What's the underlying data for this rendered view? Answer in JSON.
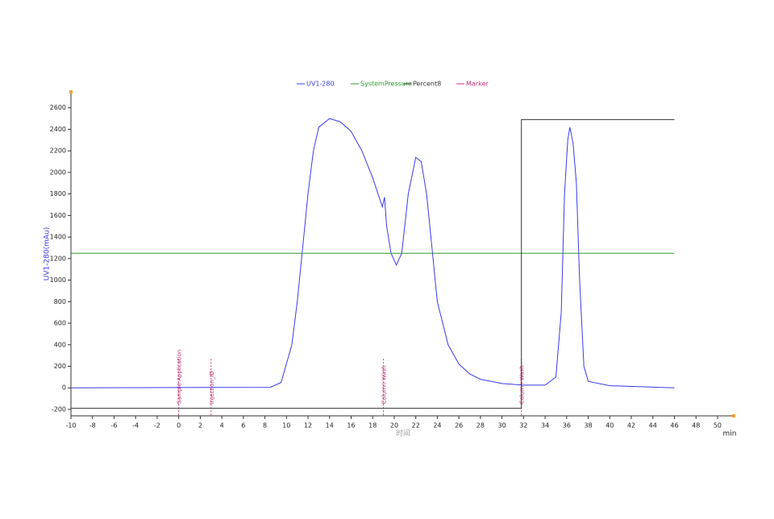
{
  "chart_data": {
    "type": "line",
    "y_label": "UV1-280(mAu)",
    "x_label": "时间",
    "x_unit": "min",
    "xlim": [
      -10,
      51.5
    ],
    "ylim": [
      -260,
      2740
    ],
    "xticks": [
      -10,
      -8,
      -6,
      -4,
      -2,
      0,
      2,
      4,
      6,
      8,
      10,
      12,
      14,
      16,
      18,
      20,
      22,
      24,
      26,
      28,
      30,
      32,
      34,
      36,
      38,
      40,
      42,
      44,
      46,
      48,
      50
    ],
    "yticks": [
      -200,
      0,
      200,
      400,
      600,
      800,
      1000,
      1200,
      1400,
      1600,
      1800,
      2000,
      2200,
      2400,
      2600
    ],
    "series": [
      {
        "name": "UV1-280",
        "color": "#3a3af0",
        "x": [
          -10,
          8.5,
          9.5,
          10.5,
          11,
          11.5,
          12,
          12.5,
          13,
          14,
          15,
          16,
          17,
          18,
          18.9,
          19.1,
          19.3,
          19.7,
          20.2,
          20.7,
          21.3,
          22,
          22.5,
          23,
          23.5,
          24,
          25,
          26,
          27,
          28,
          30,
          32,
          34,
          35,
          35.5,
          35.8,
          36.1,
          36.3,
          36.6,
          36.9,
          37.2,
          37.6,
          38,
          40,
          46
        ],
        "values": [
          0,
          5,
          50,
          400,
          800,
          1300,
          1800,
          2200,
          2420,
          2500,
          2470,
          2380,
          2200,
          1950,
          1680,
          1770,
          1500,
          1250,
          1140,
          1250,
          1800,
          2140,
          2100,
          1800,
          1300,
          800,
          400,
          220,
          130,
          80,
          40,
          25,
          25,
          100,
          700,
          1800,
          2300,
          2420,
          2270,
          1900,
          1000,
          200,
          60,
          20,
          0
        ]
      },
      {
        "name": "SystemPressure",
        "color": "#2e9e2e",
        "x": [
          -10,
          46
        ],
        "values": [
          1250,
          1250
        ]
      },
      {
        "name": "Percent8",
        "color": "#333333",
        "x": [
          -10,
          31.8,
          31.8,
          46
        ],
        "values": [
          -190,
          -190,
          2490,
          2490
        ]
      }
    ],
    "markers": {
      "name": "Marker",
      "color": "#c0307a",
      "x": [
        0,
        3,
        19,
        31.8
      ],
      "labels": [
        "Sample Application",
        "Injection_ID",
        "Column Wash",
        "Column Wash"
      ]
    }
  }
}
